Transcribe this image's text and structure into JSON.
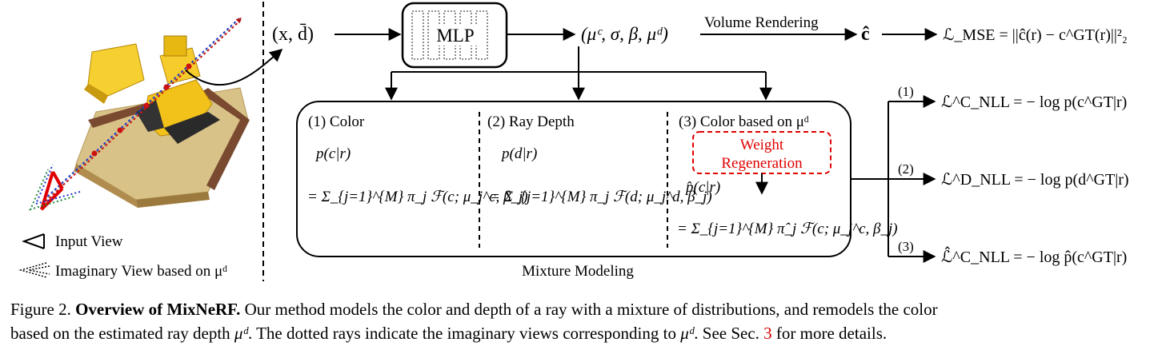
{
  "diagram": {
    "input_label": "(x, d̄)",
    "mlp_label": "MLP",
    "mlp_output": "(μᶜ, σ, β, μᵈ)",
    "volume_rendering_label": "Volume Rendering",
    "c_hat": "ĉ",
    "mse_loss": "ℒ_MSE = ||ĉ(r) − c^GT(r)||²₂",
    "legend": {
      "input_view": "Input View",
      "imaginary_view": "Imaginary View based on μᵈ"
    },
    "mixture_box": {
      "title": "Mixture Modeling",
      "color": {
        "heading": "(1) Color",
        "lhs": "p(c|r)",
        "rhs": "= Σ_{j=1}^{M} π_j ℱ(c; μ_j^c, β_j)"
      },
      "ray_depth": {
        "heading": "(2) Ray Depth",
        "lhs": "p(d|r)",
        "rhs": "= Σ_{j=1}^{M} π_j ℱ(d; μ_j^d, β_j)"
      },
      "color_on_depth": {
        "heading": "(3) Color based on μᵈ",
        "weight_regeneration": [
          "Weight",
          "Regeneration"
        ],
        "lhs": "p̂(c|r)",
        "rhs": "= Σ_{j=1}^{M} π̂_j ℱ(c; μ_j^c, β_j)"
      }
    },
    "losses": [
      {
        "tag": "(1)",
        "expr": "ℒ^C_NLL = − log p(c^GT|r)"
      },
      {
        "tag": "(2)",
        "expr": "ℒ^D_NLL = − log p(d^GT|r)"
      },
      {
        "tag": "(3)",
        "expr": "ℒ̂^C_NLL = − log p̂(c^GT|r)"
      }
    ]
  },
  "caption": {
    "figure_number": "Figure 2.",
    "bold_title": "Overview of MixNeRF.",
    "text_line1": "Our method models the color and depth of a ray with a mixture of distributions, and remodels the color",
    "text_line2_a": "based on the estimated ray depth",
    "text_line2_math": "μᵈ",
    "text_line2_b": ". The dotted rays indicate the imaginary views corresponding to",
    "text_line2_math2": "μᵈ",
    "text_line2_c": ". See Sec.",
    "section_ref": "3",
    "text_line2_d": "for more details."
  },
  "colors": {
    "ray_red": "#cc1111",
    "ray_green": "#1e8a3a",
    "ray_blue": "#2233cc",
    "weight_regen": "#e00000",
    "lego_yellow": "#f2c21b",
    "caption_ref": "#d00000"
  }
}
